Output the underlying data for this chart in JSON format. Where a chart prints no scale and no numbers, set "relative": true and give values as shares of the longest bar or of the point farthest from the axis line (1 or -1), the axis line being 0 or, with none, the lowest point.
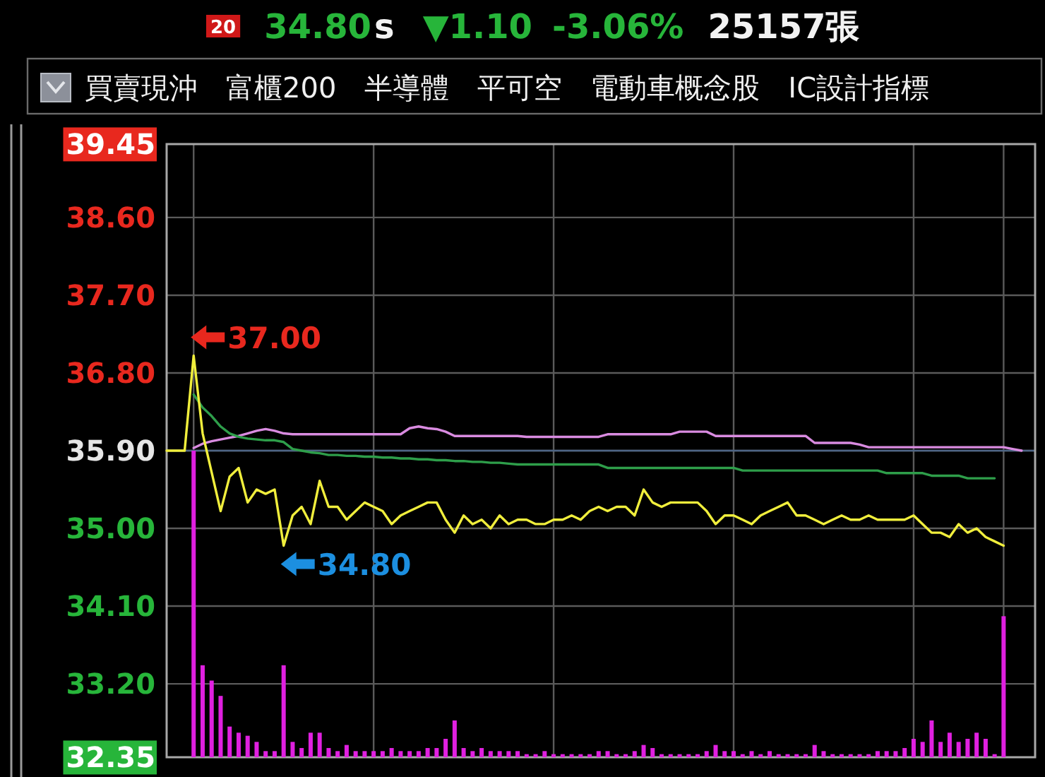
{
  "chart_data": [
    {
      "type": "line",
      "subtitle": "買賣現沖　富櫃200　半導體　平可空　電動車概念股　IC設計指標",
      "categories": [
        null,
        null,
        null,
        null,
        null,
        null,
        null,
        null,
        null,
        null,
        null,
        null,
        null,
        null,
        null,
        null,
        null,
        null,
        null,
        null,
        null,
        null,
        null,
        null,
        null,
        null,
        null,
        null,
        null,
        null,
        null,
        null,
        null,
        null,
        null,
        null,
        null,
        null,
        null,
        null,
        null,
        null,
        null,
        null,
        null,
        null,
        null,
        null,
        null,
        null,
        null,
        null,
        null,
        null,
        null,
        null,
        null,
        null,
        null,
        null,
        null,
        null,
        null,
        null,
        null,
        null,
        null,
        null,
        null,
        null,
        null,
        null,
        null,
        null,
        null,
        null,
        null,
        null,
        null,
        null,
        null,
        null,
        null,
        null,
        null,
        null,
        null,
        null,
        null,
        null,
        null,
        null,
        null,
        null,
        null,
        null,
        null
      ],
      "series": [
        {
          "color": "#d98be0",
          "values": [
            null,
            null,
            null,
            35.93,
            35.98,
            36.01,
            36.03,
            36.05,
            36.07,
            36.1,
            36.13,
            36.15,
            36.13,
            36.1,
            36.09,
            36.09,
            36.09,
            36.09,
            36.09,
            36.09,
            36.09,
            36.09,
            36.09,
            36.09,
            36.09,
            36.09,
            36.09,
            36.16,
            36.18,
            36.16,
            36.15,
            36.12,
            36.07,
            36.07,
            36.07,
            36.07,
            36.07,
            36.07,
            36.07,
            36.07,
            36.06,
            36.06,
            36.06,
            36.06,
            36.06,
            36.06,
            36.06,
            36.06,
            36.06,
            36.09,
            36.09,
            36.09,
            36.09,
            36.09,
            36.09,
            36.09,
            36.09,
            36.12,
            36.12,
            36.12,
            36.12,
            36.07,
            36.07,
            36.07,
            36.07,
            36.07,
            36.07,
            36.07,
            36.07,
            36.07,
            36.07,
            36.07,
            35.99,
            35.99,
            35.99,
            35.99,
            35.99,
            35.97,
            35.94,
            35.94,
            35.94,
            35.94,
            35.94,
            35.94,
            35.94,
            35.94,
            35.94,
            35.94,
            35.94,
            35.94,
            35.94,
            35.94,
            35.94,
            35.94,
            35.92,
            35.9,
            null
          ]
        },
        {
          "color": "#2e9e4a",
          "values": [
            null,
            null,
            null,
            36.55,
            36.4,
            36.3,
            36.18,
            36.1,
            36.06,
            36.04,
            36.03,
            36.02,
            36.02,
            36.0,
            35.92,
            35.9,
            35.88,
            35.87,
            35.85,
            35.85,
            35.84,
            35.84,
            35.83,
            35.83,
            35.82,
            35.82,
            35.81,
            35.81,
            35.8,
            35.8,
            35.79,
            35.79,
            35.78,
            35.78,
            35.77,
            35.77,
            35.76,
            35.76,
            35.75,
            35.74,
            35.74,
            35.74,
            35.74,
            35.74,
            35.74,
            35.74,
            35.74,
            35.74,
            35.74,
            35.7,
            35.7,
            35.7,
            35.7,
            35.7,
            35.7,
            35.7,
            35.7,
            35.7,
            35.7,
            35.7,
            35.7,
            35.7,
            35.7,
            35.7,
            35.67,
            35.67,
            35.67,
            35.67,
            35.67,
            35.67,
            35.67,
            35.67,
            35.67,
            35.67,
            35.67,
            35.67,
            35.67,
            35.67,
            35.67,
            35.67,
            35.64,
            35.64,
            35.64,
            35.64,
            35.64,
            35.61,
            35.61,
            35.61,
            35.61,
            35.58,
            35.58,
            35.58,
            35.58,
            null,
            null,
            null,
            null
          ]
        },
        {
          "color": "#f0ee3c",
          "values": [
            35.9,
            35.9,
            35.9,
            37.0,
            36.1,
            35.65,
            35.2,
            35.6,
            35.7,
            35.3,
            35.45,
            35.4,
            35.45,
            34.8,
            35.15,
            35.25,
            35.05,
            35.55,
            35.25,
            35.25,
            35.1,
            35.2,
            35.3,
            35.25,
            35.2,
            35.05,
            35.15,
            35.2,
            35.25,
            35.3,
            35.3,
            35.1,
            34.95,
            35.15,
            35.05,
            35.1,
            35.0,
            35.15,
            35.05,
            35.1,
            35.1,
            35.05,
            35.05,
            35.1,
            35.1,
            35.15,
            35.1,
            35.2,
            35.25,
            35.2,
            35.25,
            35.25,
            35.15,
            35.45,
            35.3,
            35.25,
            35.3,
            35.3,
            35.3,
            35.3,
            35.2,
            35.05,
            35.15,
            35.15,
            35.1,
            35.05,
            35.15,
            35.2,
            35.25,
            35.3,
            35.15,
            35.15,
            35.1,
            35.05,
            35.1,
            35.15,
            35.1,
            35.1,
            35.15,
            35.1,
            35.1,
            35.1,
            35.1,
            35.15,
            35.05,
            34.95,
            34.95,
            34.9,
            35.05,
            34.95,
            35.0,
            34.9,
            34.85,
            34.8,
            null,
            null,
            null
          ]
        }
      ],
      "ylim": [
        32.35,
        39.45
      ],
      "yticks": [
        39.45,
        {
          "value": 38.6,
          "label": "38.60"
        },
        {
          "value": 37.7,
          "label": "37.70"
        },
        {
          "value": 36.8,
          "label": "36.80"
        },
        {
          "value": 35.9,
          "label": "35.90"
        },
        {
          "value": 35,
          "label": "35.00"
        },
        {
          "value": 34.1,
          "label": "34.10"
        },
        {
          "value": 33.2,
          "label": "33.20"
        },
        32.35
      ],
      "grid": true,
      "ref_lines": [
        {
          "axis": "y",
          "value": 35.9,
          "color": "#4d6585"
        }
      ],
      "annotations": [
        "20",
        "34.80",
        "s",
        "▼1.10",
        "-3.06%",
        "25157張",
        "37.00",
        "34.80"
      ]
    },
    {
      "type": "bar",
      "relative": true,
      "color": "#e020e0",
      "categories": [
        null,
        null,
        null,
        null,
        null,
        null,
        null,
        null,
        null,
        null,
        null,
        null,
        null,
        null,
        null,
        null,
        null,
        null,
        null,
        null,
        null,
        null,
        null,
        null,
        null,
        null,
        null,
        null,
        null,
        null,
        null,
        null,
        null,
        null,
        null,
        null,
        null,
        null,
        null,
        null,
        null,
        null,
        null,
        null,
        null,
        null,
        null,
        null,
        null,
        null,
        null,
        null,
        null,
        null,
        null,
        null,
        null,
        null,
        null,
        null,
        null,
        null,
        null,
        null,
        null,
        null,
        null,
        null,
        null,
        null,
        null,
        null,
        null,
        null,
        null,
        null,
        null,
        null,
        null,
        null,
        null,
        null,
        null,
        null,
        null,
        null,
        null,
        null,
        null,
        null,
        null,
        null,
        null,
        null,
        null,
        null,
        null
      ],
      "values": [
        null,
        null,
        null,
        1,
        0.3,
        0.25,
        0.2,
        0.1,
        0.08,
        0.07,
        0.05,
        0.02,
        0.02,
        0.3,
        0.05,
        0.03,
        0.08,
        0.08,
        0.03,
        0.02,
        0.04,
        0.02,
        0.02,
        0.02,
        0.02,
        0.03,
        0.02,
        0.02,
        0.02,
        0.03,
        0.03,
        0.06,
        0.12,
        0.03,
        0.02,
        0.03,
        0.02,
        0.02,
        0.02,
        0.02,
        0.01,
        0.01,
        0.02,
        0.01,
        0.01,
        0.01,
        0.01,
        0.01,
        0.02,
        0.02,
        0.01,
        0.01,
        0.02,
        0.04,
        0.03,
        0.01,
        0.01,
        0.01,
        0.01,
        0.01,
        0.02,
        0.04,
        0.02,
        0.02,
        0.01,
        0.02,
        0.01,
        0.02,
        0.01,
        0.01,
        0.01,
        0.01,
        0.04,
        0.02,
        0.01,
        0.01,
        0.01,
        0.01,
        0.01,
        0.02,
        0.02,
        0.02,
        0.03,
        0.06,
        0.05,
        0.12,
        0.05,
        0.08,
        0.05,
        0.06,
        0.08,
        0.06,
        0.01,
        0.46,
        null,
        null,
        null
      ]
    }
  ]
}
